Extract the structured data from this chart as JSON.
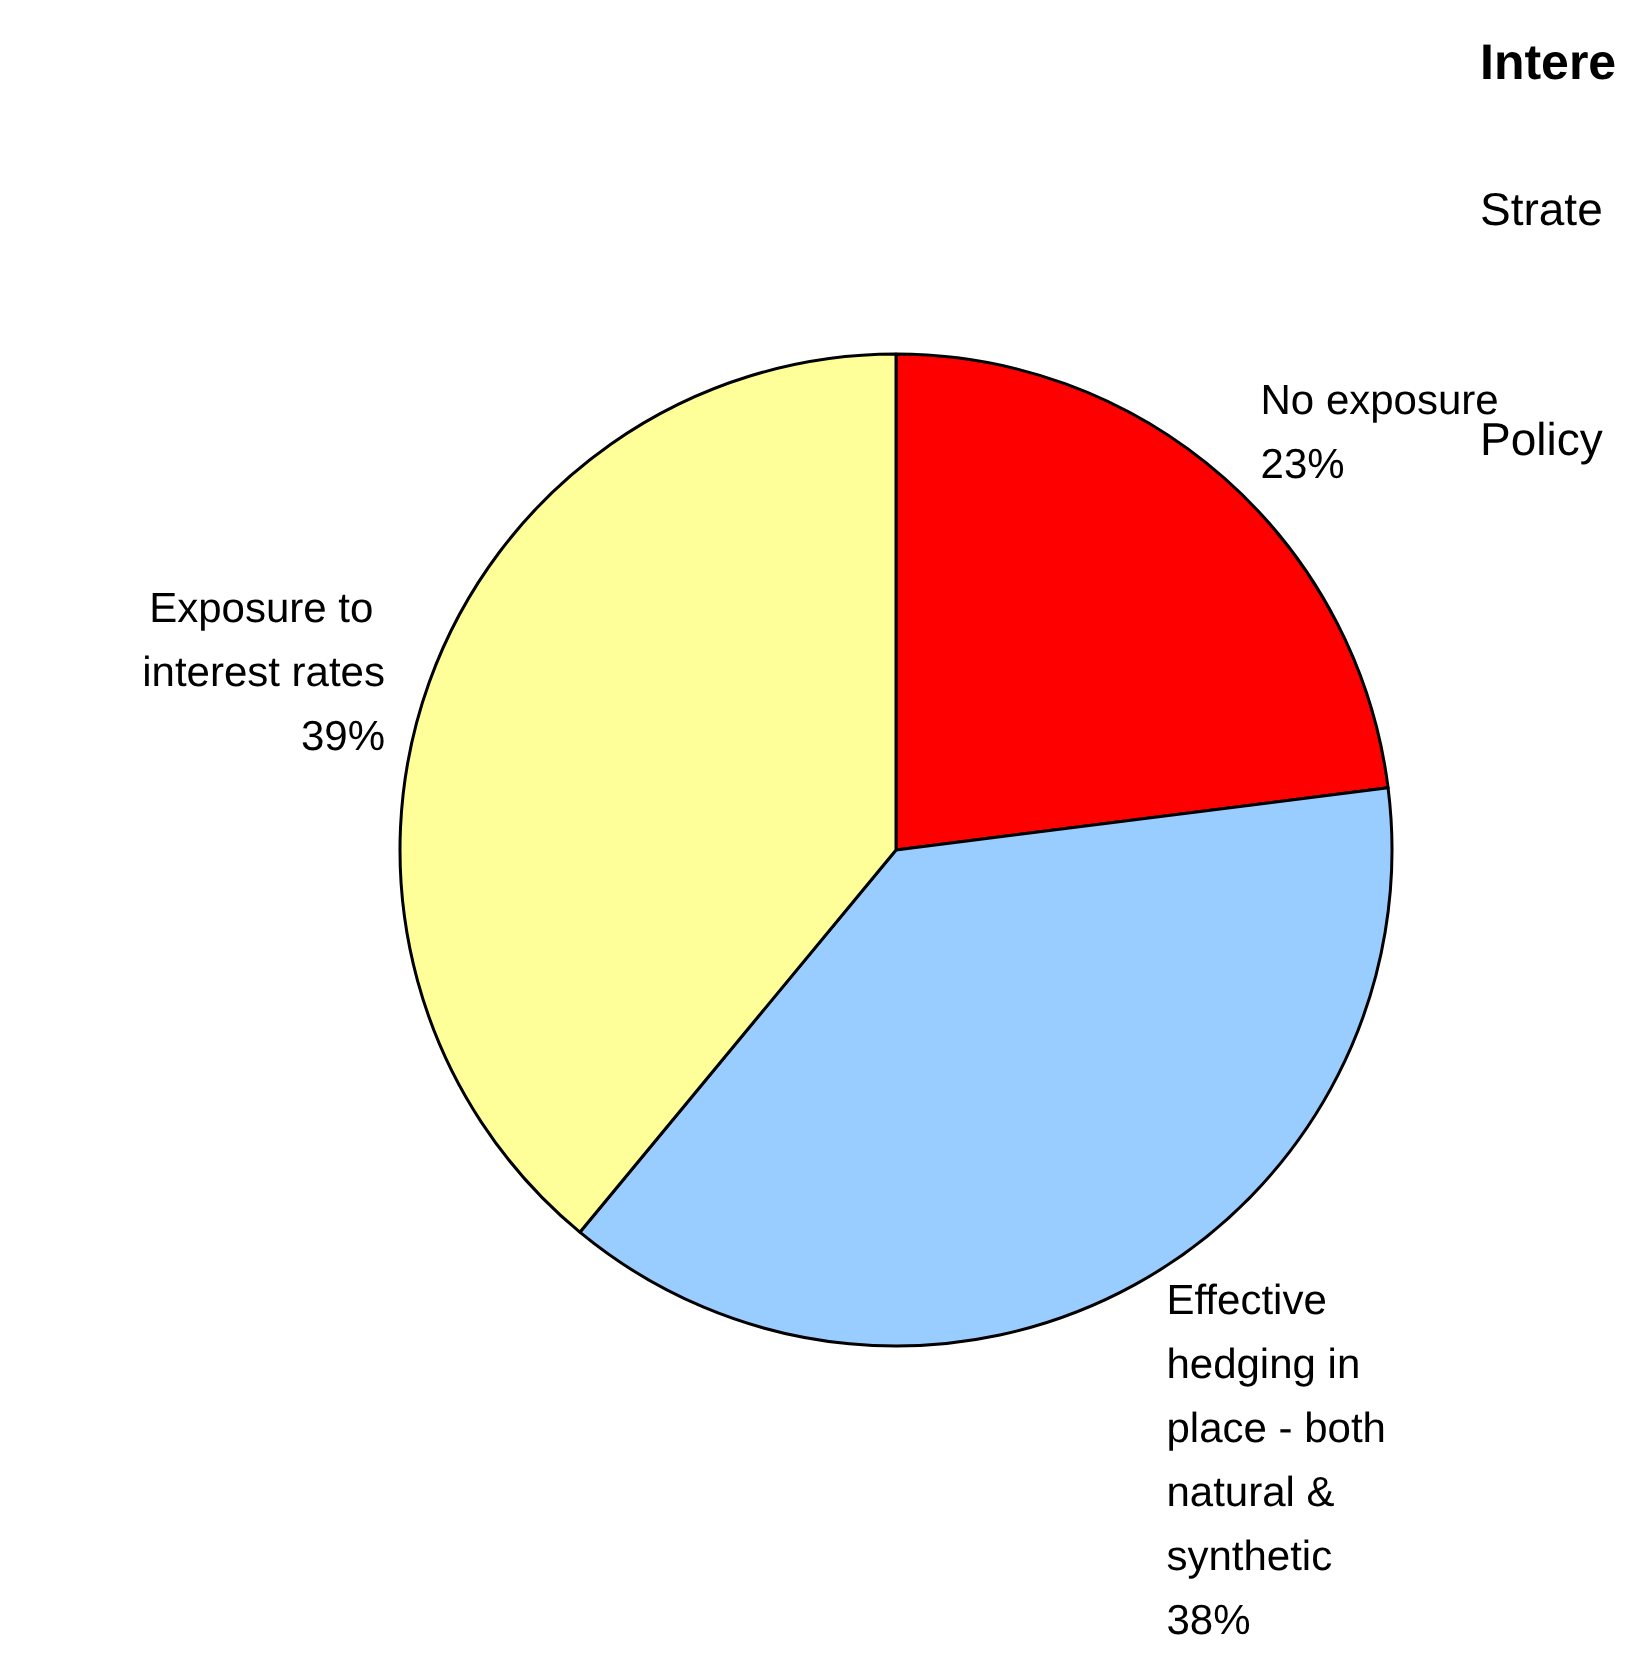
{
  "chart_data": {
    "type": "pie",
    "title": "Intere",
    "annotations": [
      "Strate",
      "Policy"
    ],
    "categories": [
      "No exposure",
      "Effective hedging in place - both natural & synthetic",
      "Exposure to interest rates"
    ],
    "values": [
      23,
      38,
      39
    ],
    "colors": [
      "#ff0000",
      "#99ccff",
      "#ffff99"
    ],
    "legend": false,
    "value_labels": [
      "23%",
      "38%",
      "39%"
    ]
  }
}
